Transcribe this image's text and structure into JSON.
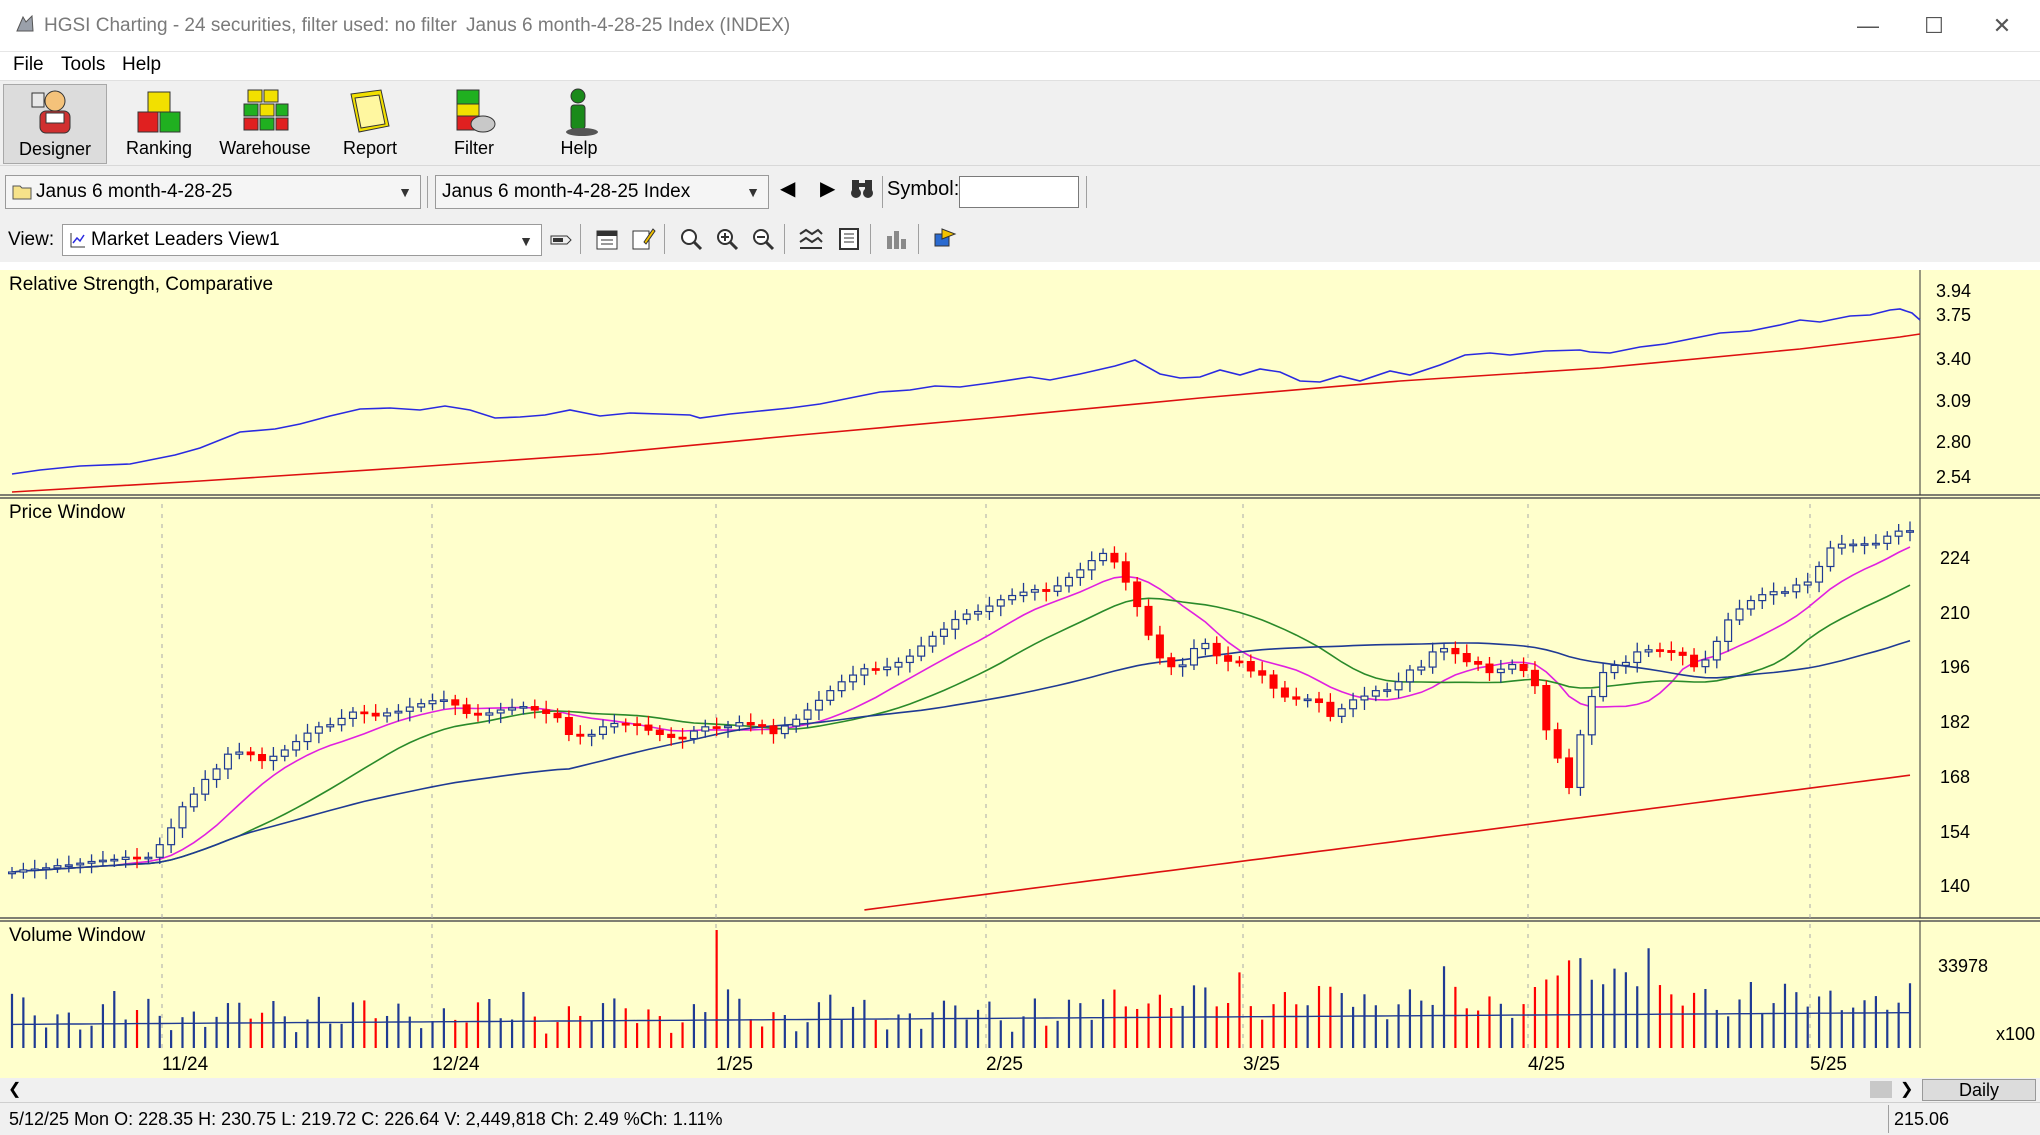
{
  "window": {
    "title": "HGSI Charting - 24 securities, filter used: no filter",
    "subtitle": "Janus 6 month-4-28-25 Index (INDEX)",
    "minimize": "—",
    "maximize": "☐",
    "close": "✕"
  },
  "menu": {
    "file": "File",
    "tools": "Tools",
    "help": "Help"
  },
  "toolbar": {
    "designer": "Designer",
    "ranking": "Ranking",
    "warehouse": "Warehouse",
    "report": "Report",
    "filter": "Filter",
    "help": "Help"
  },
  "selectors": {
    "list_value": "Janus 6 month-4-28-25",
    "security_value": "Janus 6 month-4-28-25 Index",
    "symbol_label": "Symbol:",
    "symbol_value": ""
  },
  "view": {
    "label": "View:",
    "value": "Market Leaders View1"
  },
  "panes": {
    "rs_title": "Relative Strength, Comparative",
    "price_title": "Price Window",
    "volume_title": "Volume Window"
  },
  "rs_axis": [
    "3.94",
    "3.75",
    "3.40",
    "3.09",
    "2.80",
    "2.54"
  ],
  "price_axis": [
    "224",
    "210",
    "196",
    "182",
    "168",
    "154",
    "140"
  ],
  "volume_axis": {
    "tick": "33978",
    "multiplier": "x100"
  },
  "x_axis": [
    "11/24",
    "12/24",
    "1/25",
    "2/25",
    "3/25",
    "4/25",
    "5/25"
  ],
  "period": "Daily",
  "status": {
    "bar_info": "5/12/25 Mon O: 228.35 H: 230.75 L: 219.72 C: 226.64 V: 2,449,818 Ch: 2.49 %Ch: 1.11%",
    "cursor_value": "215.06"
  },
  "colors": {
    "chart_bg": "#ffffcc",
    "up_candle": "#1f3a93",
    "down_candle": "#ff0000",
    "rs_line": "#2a2ae0",
    "ma_short": "#e020e0",
    "ma_mid": "#2a8a2a",
    "ma_long_blue": "#1f3a93",
    "ma_long_red": "#dd1010"
  },
  "chart_data": {
    "type": "candlestick",
    "price_range": [
      136,
      232
    ],
    "closes": [
      145.5,
      146,
      146.2,
      146.5,
      147,
      147.2,
      147.6,
      148,
      148.3,
      148.5,
      149,
      148.8,
      149,
      152,
      156,
      161,
      164,
      167.5,
      170,
      173.5,
      174,
      173.4,
      172,
      173,
      174.5,
      176.5,
      178.5,
      180,
      180.5,
      182,
      183.5,
      183.2,
      182.6,
      183.3,
      183.7,
      184.7,
      185.5,
      186.2,
      186.4,
      185.2,
      183.2,
      182.8,
      183.3,
      184,
      184.5,
      184.8,
      184,
      183.2,
      182.2,
      178.2,
      177.8,
      178.2,
      180,
      180.8,
      180.7,
      180.4,
      179.2,
      178.2,
      177.5,
      177.2,
      179,
      180,
      179.8,
      180.2,
      181,
      180.5,
      180.2,
      178.4,
      180.2,
      181.8,
      184,
      186.3,
      188.6,
      190.7,
      192.3,
      193.8,
      193.6,
      194.2,
      195.3,
      196.8,
      199.2,
      201.5,
      203.2,
      205.5,
      206.8,
      207.4,
      208.7,
      210.2,
      211.2,
      212,
      212.6,
      212.2,
      213.5,
      215.5,
      217.3,
      219.5,
      221.2,
      219.2,
      214.4,
      208.6,
      201.8,
      196.4,
      194.3,
      194.7,
      198.6,
      199.8,
      196.9,
      195.6,
      195.5,
      193.3,
      192.3,
      189.2,
      187.1,
      186.6,
      186.6,
      185.8,
      182.5,
      184.3,
      186.4,
      187.3,
      188.6,
      188.8,
      190.7,
      193.5,
      194.2,
      197.8,
      198.6,
      197.4,
      195.5,
      194.9,
      192.9,
      193.7,
      194.8,
      193.4,
      189.8,
      179.3,
      172.6,
      165.6,
      178.1,
      187.2,
      192.9,
      194.6,
      195.3,
      197.8,
      198.3,
      198.1,
      197.7,
      197,
      194.3,
      195.9,
      200.3,
      205.4,
      208,
      210,
      211.4,
      212.1,
      212.1,
      213.7,
      214.4,
      218.1,
      222.5,
      223.4,
      223.4,
      223.5,
      223.6,
      225.3,
      226.5,
      226.6
    ]
  }
}
